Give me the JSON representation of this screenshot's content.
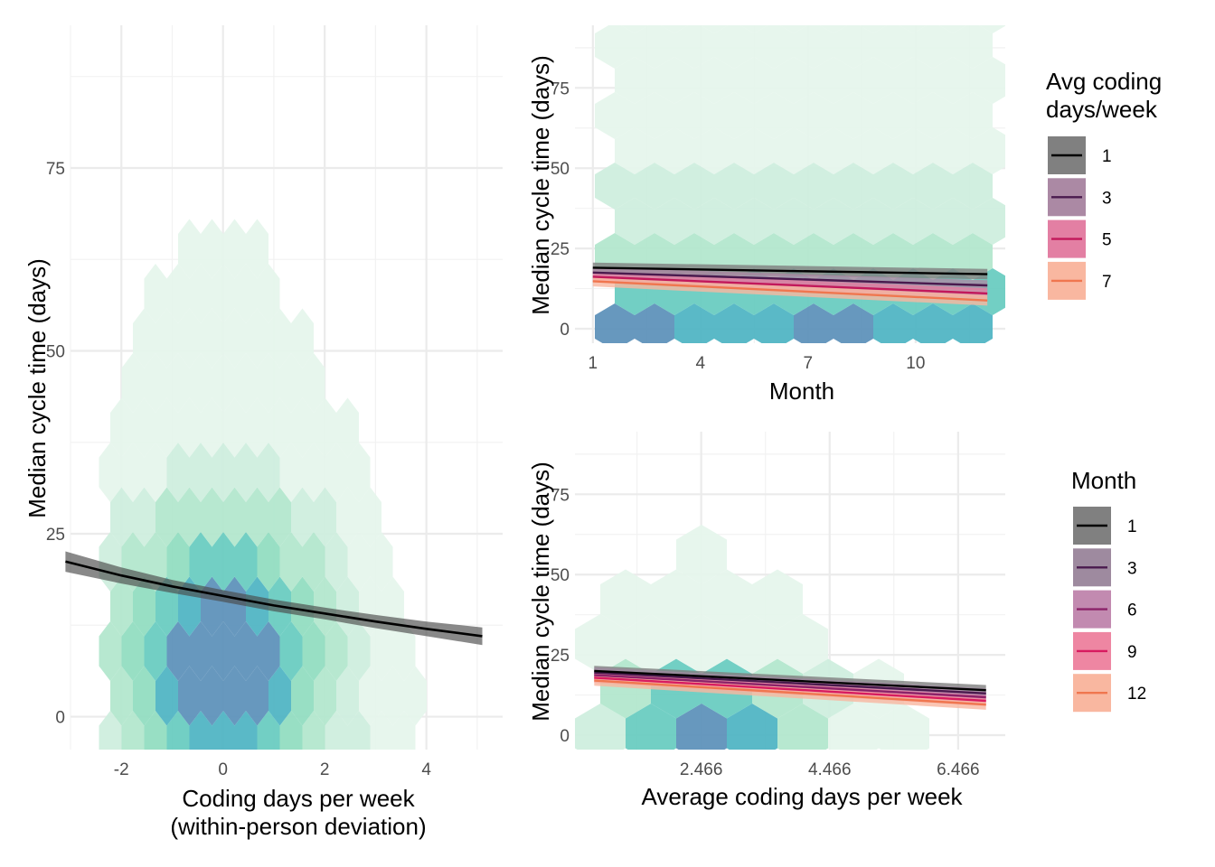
{
  "chart_data": [
    {
      "id": "left",
      "type": "hexbin+line",
      "xlabel": "Coding days per week",
      "xlabel2": "(within-person deviation)",
      "ylabel": "Median cycle time (days)",
      "xlim": [
        -3.0,
        5.5
      ],
      "ylim": [
        -4.5,
        94.5
      ],
      "xticks": [
        -2,
        0,
        2,
        4
      ],
      "xtick_labels": [
        "-2",
        "0",
        "2",
        "4"
      ],
      "yticks": [
        0,
        25,
        50,
        75
      ],
      "ytick_labels": [
        "0",
        "25",
        "50",
        "75"
      ],
      "grid": true,
      "line": {
        "color": "#000000",
        "ribbon_color": "#4a4a4a",
        "x": [
          -3.1,
          -2,
          -1,
          0,
          1,
          2,
          3,
          4,
          5.1
        ],
        "y": [
          21.2,
          19.3,
          17.8,
          16.5,
          15.2,
          14.1,
          13.0,
          12.0,
          11.0
        ],
        "ribbon_half_width": [
          1.4,
          1.1,
          0.9,
          0.8,
          0.8,
          0.8,
          0.9,
          1.0,
          1.2
        ]
      }
    },
    {
      "id": "top-right",
      "type": "hexbin+line",
      "xlabel": "Month",
      "ylabel": "Median cycle time (days)",
      "xlim": [
        0.5,
        12.5
      ],
      "ylim": [
        -4.5,
        94.5
      ],
      "xticks": [
        1,
        4,
        7,
        10
      ],
      "xtick_labels": [
        "1",
        "4",
        "7",
        "10"
      ],
      "yticks": [
        0,
        25,
        50,
        75
      ],
      "ytick_labels": [
        "0",
        "25",
        "50",
        "75"
      ],
      "grid": true,
      "legend": {
        "title_line1": "Avg coding",
        "title_line2": "days/week",
        "labels": [
          "1",
          "3",
          "5",
          "7"
        ],
        "colors": [
          "#000000",
          "#4a1a4e",
          "#c2185b",
          "#f0764f"
        ],
        "fills": [
          "#808080",
          "#ab89a4",
          "#e37fa3",
          "#f9b7a0"
        ]
      },
      "series": [
        {
          "name": "1",
          "color": "#000000",
          "x": [
            1,
            12
          ],
          "y": [
            19.0,
            17.0
          ]
        },
        {
          "name": "3",
          "color": "#4a1a4e",
          "x": [
            1,
            12
          ],
          "y": [
            17.5,
            13.5
          ]
        },
        {
          "name": "5",
          "color": "#c2185b",
          "x": [
            1,
            12
          ],
          "y": [
            16.2,
            11.0
          ]
        },
        {
          "name": "7",
          "color": "#f0764f",
          "x": [
            1,
            12
          ],
          "y": [
            14.8,
            8.8
          ]
        }
      ]
    },
    {
      "id": "bottom-right",
      "type": "hexbin+line",
      "xlabel": "Average coding days per week",
      "ylabel": "Median cycle time (days)",
      "xlim": [
        0.5,
        7.2
      ],
      "ylim": [
        -4.5,
        94.5
      ],
      "xticks": [
        2.466,
        4.466,
        6.466
      ],
      "xtick_labels": [
        "2.466",
        "4.466",
        "6.466"
      ],
      "yticks": [
        0,
        25,
        50,
        75
      ],
      "ytick_labels": [
        "0",
        "25",
        "50",
        "75"
      ],
      "grid": true,
      "legend": {
        "title_line1": "Month",
        "labels": [
          "1",
          "3",
          "6",
          "9",
          "12"
        ],
        "colors": [
          "#000000",
          "#4a1a4e",
          "#8b2269",
          "#d81b60",
          "#f0764f"
        ],
        "fills": [
          "#808080",
          "#9e8a9f",
          "#c28ab0",
          "#ee86a2",
          "#f9b7a0"
        ]
      },
      "series": [
        {
          "name": "1",
          "color": "#000000",
          "x": [
            0.8,
            6.9
          ],
          "y": [
            20.0,
            14.0
          ]
        },
        {
          "name": "3",
          "color": "#4a1a4e",
          "x": [
            0.8,
            6.9
          ],
          "y": [
            19.5,
            13.0
          ]
        },
        {
          "name": "6",
          "color": "#8b2269",
          "x": [
            0.8,
            6.9
          ],
          "y": [
            18.7,
            11.8
          ]
        },
        {
          "name": "9",
          "color": "#d81b60",
          "x": [
            0.8,
            6.9
          ],
          "y": [
            17.9,
            10.7
          ]
        },
        {
          "name": "12",
          "color": "#f0764f",
          "x": [
            0.8,
            6.9
          ],
          "y": [
            17.0,
            9.5
          ]
        }
      ]
    }
  ]
}
